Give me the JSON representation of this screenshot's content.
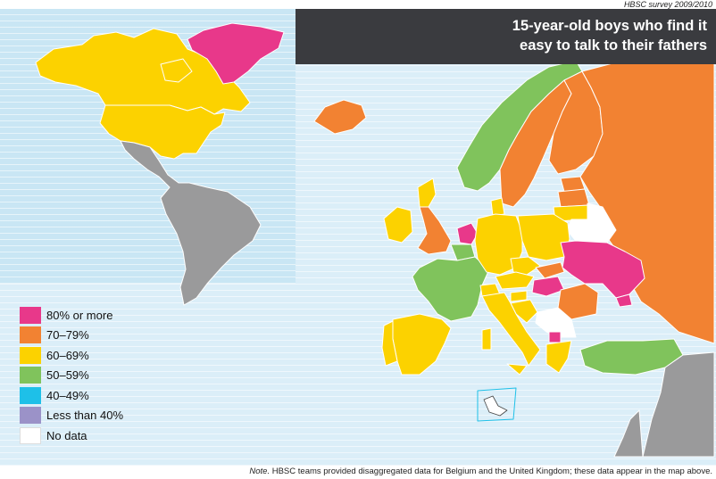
{
  "source": "HBSC survey 2009/2010",
  "title": [
    "15-year-old boys who find it",
    "easy to talk to their fathers"
  ],
  "legend": [
    {
      "label": "80% or more",
      "color": "#e8388a"
    },
    {
      "label": "70–79%",
      "color": "#f28232"
    },
    {
      "label": "60–69%",
      "color": "#fcd200"
    },
    {
      "label": "50–59%",
      "color": "#80c35c"
    },
    {
      "label": "40–49%",
      "color": "#1ec0e8"
    },
    {
      "label": "Less than 40%",
      "color": "#9b92c8"
    },
    {
      "label": "No data",
      "color": "#ffffff"
    }
  ],
  "note": {
    "lead": "Note.",
    "text": "HBSC teams provided disaggregated data for Belgium and the United Kingdom; these data appear in the map above."
  },
  "colors": {
    "no_data_land": "#9a9a9b",
    "sea": "#dbeef8",
    "border": "#ffffff"
  },
  "regions": [
    {
      "name": "Greenland",
      "category": "80% or more"
    },
    {
      "name": "Canada",
      "category": "60–69%"
    },
    {
      "name": "United States",
      "category": "60–69%"
    },
    {
      "name": "Iceland",
      "category": "70–79%"
    },
    {
      "name": "Norway",
      "category": "50–59%"
    },
    {
      "name": "Sweden",
      "category": "70–79%"
    },
    {
      "name": "Finland",
      "category": "70–79%"
    },
    {
      "name": "Russia",
      "category": "70–79%"
    },
    {
      "name": "Ireland",
      "category": "60–69%"
    },
    {
      "name": "Scotland",
      "category": "60–69%"
    },
    {
      "name": "England",
      "category": "70–79%"
    },
    {
      "name": "Wales",
      "category": "70–79%"
    },
    {
      "name": "Netherlands",
      "category": "80% or more"
    },
    {
      "name": "Belgium",
      "category": "50–59%"
    },
    {
      "name": "France",
      "category": "50–59%"
    },
    {
      "name": "Spain",
      "category": "60–69%"
    },
    {
      "name": "Portugal",
      "category": "60–69%"
    },
    {
      "name": "Germany",
      "category": "60–69%"
    },
    {
      "name": "Denmark",
      "category": "60–69%"
    },
    {
      "name": "Poland",
      "category": "60–69%"
    },
    {
      "name": "Lithuania",
      "category": "60–69%"
    },
    {
      "name": "Latvia",
      "category": "70–79%"
    },
    {
      "name": "Estonia",
      "category": "70–79%"
    },
    {
      "name": "Belarus",
      "category": "No data"
    },
    {
      "name": "Ukraine",
      "category": "80% or more"
    },
    {
      "name": "Czech Republic",
      "category": "60–69%"
    },
    {
      "name": "Slovakia",
      "category": "70–79%"
    },
    {
      "name": "Hungary",
      "category": "80% or more"
    },
    {
      "name": "Romania",
      "category": "70–79%"
    },
    {
      "name": "Austria",
      "category": "60–69%"
    },
    {
      "name": "Switzerland",
      "category": "60–69%"
    },
    {
      "name": "Italy",
      "category": "60–69%"
    },
    {
      "name": "Slovenia",
      "category": "60–69%"
    },
    {
      "name": "Croatia",
      "category": "60–69%"
    },
    {
      "name": "Greece",
      "category": "60–69%"
    },
    {
      "name": "Turkey",
      "category": "50–59%"
    },
    {
      "name": "Macedonia",
      "category": "80% or more"
    },
    {
      "name": "Malta",
      "category": "No data"
    }
  ]
}
